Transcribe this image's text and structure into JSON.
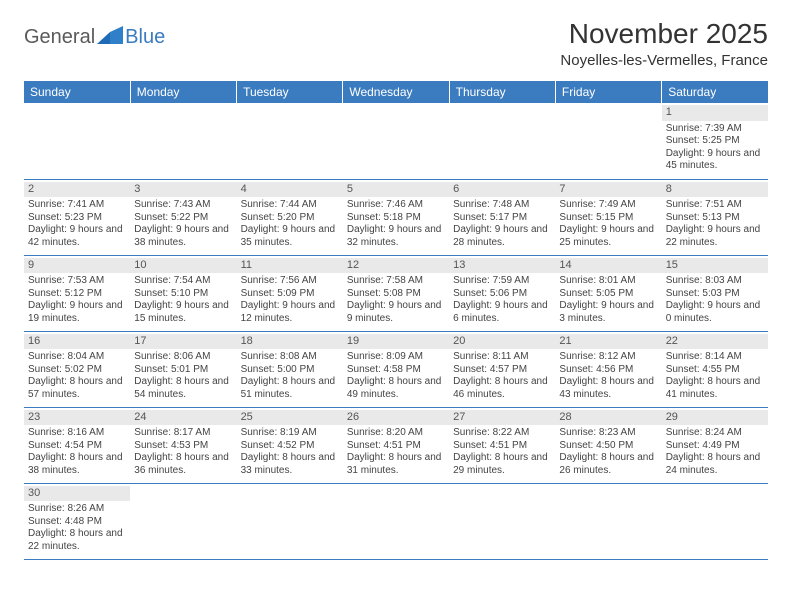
{
  "logo": {
    "general": "General",
    "blue": "Blue"
  },
  "title": "November 2025",
  "location": "Noyelles-les-Vermelles, France",
  "colors": {
    "header_bg": "#3b7bbf",
    "header_text": "#ffffff",
    "daynum_bg": "#e9e9e9",
    "row_border": "#3b7bbf",
    "body_text": "#444444",
    "logo_general": "#5a5a5a",
    "logo_blue": "#3b7bbf"
  },
  "day_headers": [
    "Sunday",
    "Monday",
    "Tuesday",
    "Wednesday",
    "Thursday",
    "Friday",
    "Saturday"
  ],
  "weeks": [
    [
      {
        "day": "",
        "lines": []
      },
      {
        "day": "",
        "lines": []
      },
      {
        "day": "",
        "lines": []
      },
      {
        "day": "",
        "lines": []
      },
      {
        "day": "",
        "lines": []
      },
      {
        "day": "",
        "lines": []
      },
      {
        "day": "1",
        "lines": [
          "Sunrise: 7:39 AM",
          "Sunset: 5:25 PM",
          "Daylight: 9 hours and 45 minutes."
        ]
      }
    ],
    [
      {
        "day": "2",
        "lines": [
          "Sunrise: 7:41 AM",
          "Sunset: 5:23 PM",
          "Daylight: 9 hours and 42 minutes."
        ]
      },
      {
        "day": "3",
        "lines": [
          "Sunrise: 7:43 AM",
          "Sunset: 5:22 PM",
          "Daylight: 9 hours and 38 minutes."
        ]
      },
      {
        "day": "4",
        "lines": [
          "Sunrise: 7:44 AM",
          "Sunset: 5:20 PM",
          "Daylight: 9 hours and 35 minutes."
        ]
      },
      {
        "day": "5",
        "lines": [
          "Sunrise: 7:46 AM",
          "Sunset: 5:18 PM",
          "Daylight: 9 hours and 32 minutes."
        ]
      },
      {
        "day": "6",
        "lines": [
          "Sunrise: 7:48 AM",
          "Sunset: 5:17 PM",
          "Daylight: 9 hours and 28 minutes."
        ]
      },
      {
        "day": "7",
        "lines": [
          "Sunrise: 7:49 AM",
          "Sunset: 5:15 PM",
          "Daylight: 9 hours and 25 minutes."
        ]
      },
      {
        "day": "8",
        "lines": [
          "Sunrise: 7:51 AM",
          "Sunset: 5:13 PM",
          "Daylight: 9 hours and 22 minutes."
        ]
      }
    ],
    [
      {
        "day": "9",
        "lines": [
          "Sunrise: 7:53 AM",
          "Sunset: 5:12 PM",
          "Daylight: 9 hours and 19 minutes."
        ]
      },
      {
        "day": "10",
        "lines": [
          "Sunrise: 7:54 AM",
          "Sunset: 5:10 PM",
          "Daylight: 9 hours and 15 minutes."
        ]
      },
      {
        "day": "11",
        "lines": [
          "Sunrise: 7:56 AM",
          "Sunset: 5:09 PM",
          "Daylight: 9 hours and 12 minutes."
        ]
      },
      {
        "day": "12",
        "lines": [
          "Sunrise: 7:58 AM",
          "Sunset: 5:08 PM",
          "Daylight: 9 hours and 9 minutes."
        ]
      },
      {
        "day": "13",
        "lines": [
          "Sunrise: 7:59 AM",
          "Sunset: 5:06 PM",
          "Daylight: 9 hours and 6 minutes."
        ]
      },
      {
        "day": "14",
        "lines": [
          "Sunrise: 8:01 AM",
          "Sunset: 5:05 PM",
          "Daylight: 9 hours and 3 minutes."
        ]
      },
      {
        "day": "15",
        "lines": [
          "Sunrise: 8:03 AM",
          "Sunset: 5:03 PM",
          "Daylight: 9 hours and 0 minutes."
        ]
      }
    ],
    [
      {
        "day": "16",
        "lines": [
          "Sunrise: 8:04 AM",
          "Sunset: 5:02 PM",
          "Daylight: 8 hours and 57 minutes."
        ]
      },
      {
        "day": "17",
        "lines": [
          "Sunrise: 8:06 AM",
          "Sunset: 5:01 PM",
          "Daylight: 8 hours and 54 minutes."
        ]
      },
      {
        "day": "18",
        "lines": [
          "Sunrise: 8:08 AM",
          "Sunset: 5:00 PM",
          "Daylight: 8 hours and 51 minutes."
        ]
      },
      {
        "day": "19",
        "lines": [
          "Sunrise: 8:09 AM",
          "Sunset: 4:58 PM",
          "Daylight: 8 hours and 49 minutes."
        ]
      },
      {
        "day": "20",
        "lines": [
          "Sunrise: 8:11 AM",
          "Sunset: 4:57 PM",
          "Daylight: 8 hours and 46 minutes."
        ]
      },
      {
        "day": "21",
        "lines": [
          "Sunrise: 8:12 AM",
          "Sunset: 4:56 PM",
          "Daylight: 8 hours and 43 minutes."
        ]
      },
      {
        "day": "22",
        "lines": [
          "Sunrise: 8:14 AM",
          "Sunset: 4:55 PM",
          "Daylight: 8 hours and 41 minutes."
        ]
      }
    ],
    [
      {
        "day": "23",
        "lines": [
          "Sunrise: 8:16 AM",
          "Sunset: 4:54 PM",
          "Daylight: 8 hours and 38 minutes."
        ]
      },
      {
        "day": "24",
        "lines": [
          "Sunrise: 8:17 AM",
          "Sunset: 4:53 PM",
          "Daylight: 8 hours and 36 minutes."
        ]
      },
      {
        "day": "25",
        "lines": [
          "Sunrise: 8:19 AM",
          "Sunset: 4:52 PM",
          "Daylight: 8 hours and 33 minutes."
        ]
      },
      {
        "day": "26",
        "lines": [
          "Sunrise: 8:20 AM",
          "Sunset: 4:51 PM",
          "Daylight: 8 hours and 31 minutes."
        ]
      },
      {
        "day": "27",
        "lines": [
          "Sunrise: 8:22 AM",
          "Sunset: 4:51 PM",
          "Daylight: 8 hours and 29 minutes."
        ]
      },
      {
        "day": "28",
        "lines": [
          "Sunrise: 8:23 AM",
          "Sunset: 4:50 PM",
          "Daylight: 8 hours and 26 minutes."
        ]
      },
      {
        "day": "29",
        "lines": [
          "Sunrise: 8:24 AM",
          "Sunset: 4:49 PM",
          "Daylight: 8 hours and 24 minutes."
        ]
      }
    ],
    [
      {
        "day": "30",
        "lines": [
          "Sunrise: 8:26 AM",
          "Sunset: 4:48 PM",
          "Daylight: 8 hours and 22 minutes."
        ]
      },
      {
        "day": "",
        "lines": []
      },
      {
        "day": "",
        "lines": []
      },
      {
        "day": "",
        "lines": []
      },
      {
        "day": "",
        "lines": []
      },
      {
        "day": "",
        "lines": []
      },
      {
        "day": "",
        "lines": []
      }
    ]
  ]
}
